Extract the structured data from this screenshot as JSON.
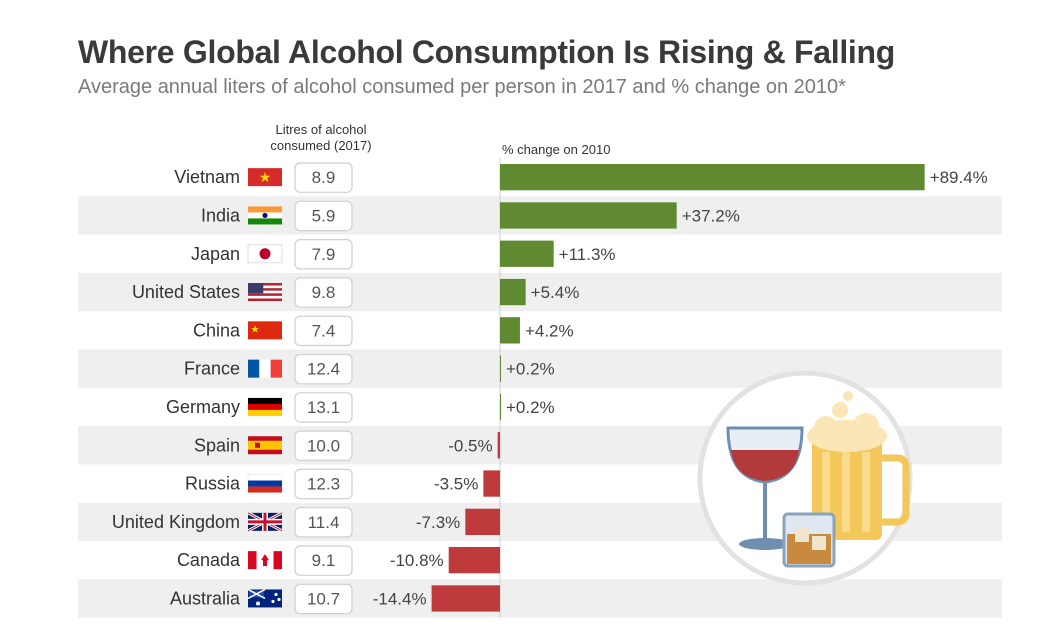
{
  "chart_data": {
    "type": "bar",
    "title": "Where Global Alcohol Consumption Is Rising & Falling",
    "subtitle": "Average annual liters of alcohol consumed per person in 2017 and % change on 2010*",
    "litres_header": "Litres of alcohol consumed (2017)",
    "pct_header": "% change on 2010",
    "value_unit": "%",
    "categories": [
      "Vietnam",
      "India",
      "Japan",
      "United States",
      "China",
      "France",
      "Germany",
      "Spain",
      "Russia",
      "United Kingdom",
      "Canada",
      "Australia"
    ],
    "series": [
      {
        "name": "Litres of alcohol consumed (2017)",
        "values": [
          8.9,
          5.9,
          7.9,
          9.8,
          7.4,
          12.4,
          13.1,
          10.0,
          12.3,
          11.4,
          9.1,
          10.7
        ]
      },
      {
        "name": "% change on 2010",
        "values": [
          89.4,
          37.2,
          11.3,
          5.4,
          4.2,
          0.2,
          0.2,
          -0.5,
          -3.5,
          -7.3,
          -10.8,
          -14.4
        ]
      }
    ],
    "litres_labels": [
      "8.9",
      "5.9",
      "7.9",
      "9.8",
      "7.4",
      "12.4",
      "13.1",
      "10.0",
      "12.3",
      "11.4",
      "9.1",
      "10.7"
    ],
    "pct_labels": [
      "+89.4%",
      "+37.2%",
      "+11.3%",
      "+5.4%",
      "+4.2%",
      "+0.2%",
      "+0.2%",
      "-0.5%",
      "-3.5%",
      "-7.3%",
      "-10.8%",
      "-14.4%"
    ],
    "flags": [
      "flag-vietnam-icon",
      "flag-india-icon",
      "flag-japan-icon",
      "flag-united-states-icon",
      "flag-china-icon",
      "flag-france-icon",
      "flag-germany-icon",
      "flag-spain-icon",
      "flag-russia-icon",
      "flag-united-kingdom-icon",
      "flag-canada-icon",
      "flag-australia-icon"
    ],
    "colors": {
      "positive": "#5f8a32",
      "negative": "#bf3a3a",
      "stripe": "#efefef",
      "text": "#333333"
    },
    "illustration": "drinks-illustration-icon"
  }
}
